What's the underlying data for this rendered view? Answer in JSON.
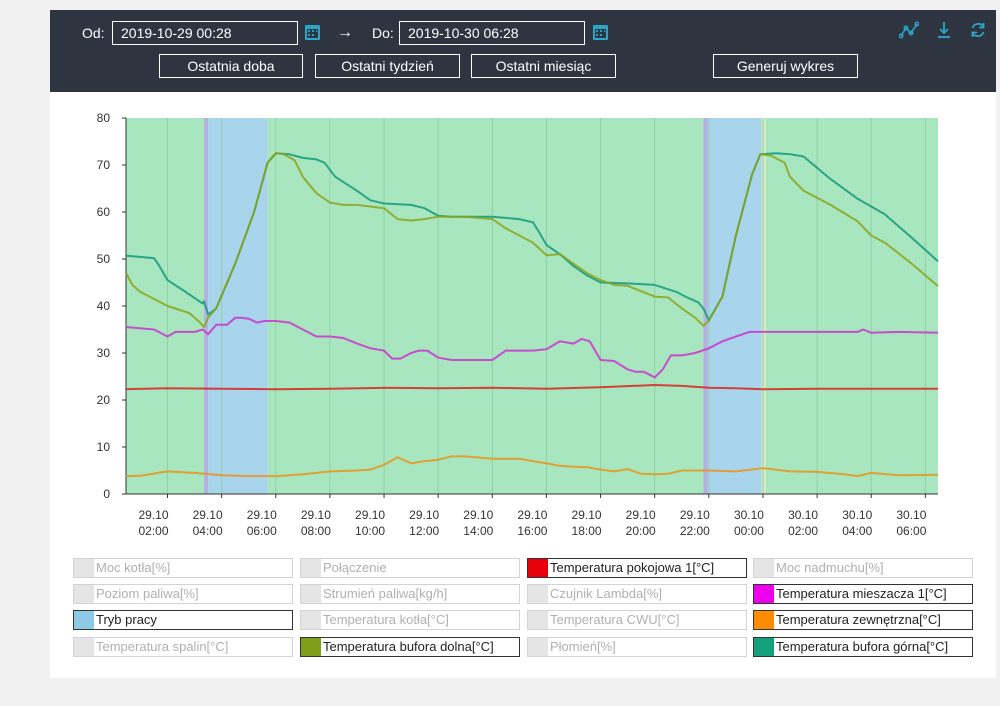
{
  "toolbar": {
    "from_label": "Od:",
    "from_value": "2019-10-29 00:28",
    "to_label": "Do:",
    "to_value": "2019-10-30 06:28",
    "arrow": "→",
    "buttons": {
      "last_day": "Ostatnia doba",
      "last_week": "Ostatni tydzień",
      "last_month": "Ostatni miesiąc",
      "generate": "Generuj wykres"
    },
    "icons": [
      "chart-line-icon",
      "download-icon",
      "refresh-icon"
    ],
    "accent_color": "#2aa6c9"
  },
  "chart_data": {
    "type": "line",
    "ylim": [
      0,
      80
    ],
    "yticks": [
      0,
      10,
      20,
      30,
      40,
      50,
      60,
      70,
      80
    ],
    "xlim": [
      0.4667,
      30.4667
    ],
    "xticks": [
      {
        "h": 2,
        "date": "29.10",
        "time": "02:00"
      },
      {
        "h": 4,
        "date": "29.10",
        "time": "04:00"
      },
      {
        "h": 6,
        "date": "29.10",
        "time": "06:00"
      },
      {
        "h": 8,
        "date": "29.10",
        "time": "08:00"
      },
      {
        "h": 10,
        "date": "29.10",
        "time": "10:00"
      },
      {
        "h": 12,
        "date": "29.10",
        "time": "12:00"
      },
      {
        "h": 14,
        "date": "29.10",
        "time": "14:00"
      },
      {
        "h": 16,
        "date": "29.10",
        "time": "16:00"
      },
      {
        "h": 18,
        "date": "29.10",
        "time": "18:00"
      },
      {
        "h": 20,
        "date": "29.10",
        "time": "20:00"
      },
      {
        "h": 22,
        "date": "29.10",
        "time": "22:00"
      },
      {
        "h": 24,
        "date": "30.10",
        "time": "00:00"
      },
      {
        "h": 26,
        "date": "30.10",
        "time": "02:00"
      },
      {
        "h": 28,
        "date": "30.10",
        "time": "04:00"
      },
      {
        "h": 30,
        "date": "30.10",
        "time": "06:00"
      }
    ],
    "mode_bands": [
      {
        "start": 0.4667,
        "end": 3.35,
        "mode": "work",
        "color": "#a8e6c0"
      },
      {
        "start": 3.35,
        "end": 3.5,
        "mode": "transition",
        "color": "#b4b0e0"
      },
      {
        "start": 3.5,
        "end": 5.7,
        "mode": "fire-up",
        "color": "#a8d4ec"
      },
      {
        "start": 5.7,
        "end": 21.8,
        "mode": "work",
        "color": "#a8e6c0"
      },
      {
        "start": 21.8,
        "end": 21.95,
        "mode": "transition",
        "color": "#b4b0e0"
      },
      {
        "start": 21.95,
        "end": 23.95,
        "mode": "fire-up",
        "color": "#a8d4ec"
      },
      {
        "start": 23.95,
        "end": 24.1,
        "mode": "transition",
        "color": "#d6ecc0"
      },
      {
        "start": 24.1,
        "end": 30.4667,
        "mode": "work",
        "color": "#a8e6c0"
      }
    ],
    "series": [
      {
        "name": "Temperatura bufora górna[°C]",
        "color": "#13997a",
        "x": [
          0.47,
          1.5,
          1.7,
          2.0,
          2.8,
          3.3,
          3.35,
          3.5,
          3.8,
          4.5,
          5.2,
          5.7,
          6.0,
          6.5,
          7.0,
          7.5,
          7.8,
          8.2,
          9.0,
          9.5,
          10.0,
          11.0,
          11.5,
          12.0,
          12.5,
          13.0,
          14.0,
          15.0,
          15.5,
          15.7,
          16.0,
          16.5,
          17.0,
          17.5,
          18.0,
          19.0,
          20.0,
          20.8,
          21.2,
          21.6,
          21.8,
          22.0,
          22.5,
          23.0,
          23.6,
          23.9,
          24.5,
          25.0,
          25.5,
          26.5,
          27.5,
          28.5,
          29.5,
          30.47
        ],
        "y": [
          50.7,
          50.2,
          48.5,
          45.5,
          42.5,
          40.5,
          41.0,
          38.2,
          39.5,
          49.0,
          60.0,
          70.5,
          72.5,
          72.3,
          71.5,
          71.2,
          70.5,
          67.5,
          64.5,
          62.5,
          61.8,
          61.5,
          60.8,
          59.2,
          59.0,
          59.0,
          59.0,
          58.5,
          57.8,
          56.0,
          53.0,
          51.0,
          48.5,
          46.5,
          45.0,
          44.8,
          44.5,
          43.0,
          41.8,
          40.8,
          39.5,
          37.0,
          42.0,
          55.0,
          68.0,
          72.3,
          72.5,
          72.3,
          71.8,
          67.0,
          62.8,
          59.5,
          54.5,
          49.5
        ]
      },
      {
        "name": "Temperatura bufora dolna[°C]",
        "color": "#8aa51a",
        "x": [
          0.47,
          0.7,
          1.0,
          1.5,
          2.0,
          2.8,
          3.2,
          3.35,
          3.5,
          3.8,
          4.5,
          5.2,
          5.7,
          6.0,
          6.3,
          6.7,
          7.0,
          7.5,
          8.0,
          8.5,
          9.0,
          10.0,
          10.5,
          11.0,
          11.5,
          12.0,
          13.0,
          14.0,
          14.5,
          15.0,
          15.5,
          16.0,
          16.5,
          17.0,
          17.5,
          18.0,
          18.5,
          19.0,
          20.0,
          20.5,
          21.0,
          21.5,
          21.8,
          22.0,
          22.5,
          23.0,
          23.6,
          23.9,
          24.3,
          24.8,
          25.0,
          25.5,
          26.5,
          27.5,
          28.0,
          28.5,
          29.5,
          30.47
        ],
        "y": [
          47.0,
          44.5,
          43.0,
          41.5,
          40.0,
          38.5,
          36.5,
          35.5,
          37.5,
          39.5,
          49.0,
          60.0,
          70.5,
          72.5,
          72.3,
          71.0,
          67.5,
          64.0,
          62.0,
          61.5,
          61.5,
          60.8,
          58.5,
          58.2,
          58.5,
          59.0,
          59.0,
          58.5,
          56.5,
          55.0,
          53.5,
          50.8,
          51.0,
          49.0,
          47.0,
          45.5,
          44.5,
          44.3,
          42.0,
          41.8,
          39.5,
          37.5,
          35.8,
          36.8,
          42.0,
          55.0,
          68.0,
          72.3,
          72.0,
          70.5,
          67.5,
          64.5,
          61.5,
          58.0,
          55.0,
          53.5,
          49.0,
          44.2
        ]
      },
      {
        "name": "Temperatura mieszacza 1[°C]",
        "color": "#cc33cc",
        "x": [
          0.47,
          1.5,
          2.0,
          2.3,
          2.6,
          3.0,
          3.3,
          3.5,
          3.8,
          4.2,
          4.5,
          4.7,
          5.0,
          5.3,
          5.6,
          6.0,
          6.5,
          7.0,
          7.5,
          8.0,
          8.5,
          9.0,
          9.5,
          10.0,
          10.3,
          10.6,
          11.0,
          11.3,
          11.6,
          12.0,
          12.5,
          13.0,
          13.5,
          14.0,
          14.5,
          15.0,
          15.5,
          16.0,
          16.5,
          17.0,
          17.3,
          17.6,
          18.0,
          18.5,
          19.0,
          19.3,
          19.6,
          20.0,
          20.3,
          20.6,
          21.0,
          21.5,
          22.0,
          22.5,
          23.0,
          23.5,
          24.0,
          25.0,
          26.0,
          27.0,
          27.5,
          27.7,
          28.0,
          29.0,
          30.47
        ],
        "y": [
          35.5,
          35.0,
          33.5,
          34.5,
          34.5,
          34.5,
          35.0,
          34.0,
          36.0,
          36.0,
          37.5,
          37.5,
          37.3,
          36.5,
          36.8,
          36.8,
          36.5,
          35.0,
          33.5,
          33.5,
          33.2,
          32.0,
          31.0,
          30.5,
          28.8,
          28.8,
          30.0,
          30.5,
          30.5,
          29.0,
          28.5,
          28.5,
          28.5,
          28.5,
          30.5,
          30.5,
          30.5,
          30.8,
          32.5,
          32.0,
          33.0,
          32.5,
          28.5,
          28.3,
          26.5,
          26.0,
          26.0,
          24.8,
          26.5,
          29.5,
          29.5,
          30.0,
          31.0,
          32.5,
          33.5,
          34.5,
          34.5,
          34.5,
          34.5,
          34.5,
          34.5,
          35.0,
          34.3,
          34.5,
          34.3
        ]
      },
      {
        "name": "Temperatura pokojowa 1[°C]",
        "color": "#d8261f",
        "x": [
          0.47,
          2.0,
          4.0,
          6.0,
          8.0,
          10.0,
          12.0,
          14.0,
          16.0,
          18.0,
          20.0,
          21.0,
          22.0,
          23.0,
          24.0,
          26.0,
          28.0,
          30.47
        ],
        "y": [
          22.3,
          22.5,
          22.4,
          22.3,
          22.4,
          22.6,
          22.5,
          22.6,
          22.4,
          22.7,
          23.2,
          23.0,
          22.6,
          22.5,
          22.3,
          22.4,
          22.4,
          22.4
        ]
      },
      {
        "name": "Temperatura zewnętrzna[°C]",
        "color": "#e8941a",
        "x": [
          0.47,
          1.0,
          2.0,
          3.0,
          4.0,
          5.0,
          6.0,
          6.5,
          7.0,
          7.5,
          8.0,
          9.0,
          9.5,
          10.0,
          10.5,
          11.0,
          11.5,
          12.0,
          12.5,
          13.0,
          14.0,
          15.0,
          16.0,
          16.5,
          17.0,
          17.5,
          18.0,
          18.5,
          19.0,
          19.5,
          20.0,
          20.5,
          21.0,
          22.0,
          23.0,
          24.0,
          25.0,
          26.0,
          27.0,
          27.5,
          28.0,
          29.0,
          30.47
        ],
        "y": [
          3.8,
          3.9,
          4.8,
          4.5,
          4.0,
          3.8,
          3.8,
          4.0,
          4.2,
          4.5,
          4.8,
          5.0,
          5.2,
          6.2,
          7.8,
          6.5,
          7.0,
          7.3,
          8.0,
          8.0,
          7.5,
          7.5,
          6.5,
          6.0,
          5.8,
          5.7,
          5.2,
          4.8,
          5.3,
          4.3,
          4.2,
          4.3,
          5.0,
          5.0,
          4.8,
          5.5,
          4.8,
          4.7,
          4.2,
          3.8,
          4.5,
          4.0,
          4.1
        ]
      }
    ]
  },
  "legend": [
    {
      "label": "Moc kotła[%]",
      "color": "#e5e5e5",
      "active": false
    },
    {
      "label": "Połączenie",
      "color": "#e5e5e5",
      "active": false
    },
    {
      "label": "Temperatura pokojowa 1[°C]",
      "color": "#e8000b",
      "active": true
    },
    {
      "label": "Moc nadmuchu[%]",
      "color": "#e5e5e5",
      "active": false
    },
    {
      "label": "Poziom paliwa[%]",
      "color": "#e5e5e5",
      "active": false
    },
    {
      "label": "Strumień paliwa[kg/h]",
      "color": "#e5e5e5",
      "active": false
    },
    {
      "label": "Czujnik Lambda[%]",
      "color": "#e5e5e5",
      "active": false
    },
    {
      "label": "Temperatura mieszacza 1[°C]",
      "color": "#ee00ee",
      "active": true
    },
    {
      "label": "Tryb pracy",
      "color": "#8ecae6",
      "active": true
    },
    {
      "label": "Temperatura kotła[°C]",
      "color": "#e5e5e5",
      "active": false
    },
    {
      "label": "Temperatura CWU[°C]",
      "color": "#e5e5e5",
      "active": false
    },
    {
      "label": "Temperatura zewnętrzna[°C]",
      "color": "#ff8c00",
      "active": true
    },
    {
      "label": "Temperatura spalin[°C]",
      "color": "#e5e5e5",
      "active": false
    },
    {
      "label": "Temperatura bufora dolna[°C]",
      "color": "#7f9e1a",
      "active": true
    },
    {
      "label": "Płomień[%]",
      "color": "#e5e5e5",
      "active": false
    },
    {
      "label": "Temperatura bufora górna[°C]",
      "color": "#13a07a",
      "active": true
    }
  ]
}
